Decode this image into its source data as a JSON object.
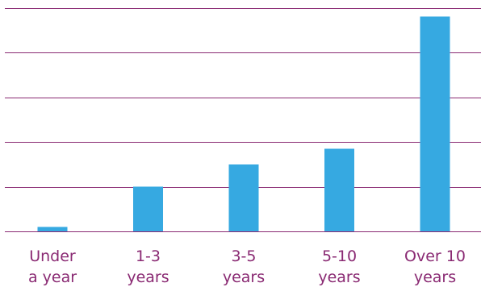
{
  "chart_data": {
    "type": "bar",
    "title": "",
    "xlabel": "",
    "ylabel": "",
    "categories": [
      [
        "Under",
        "a year"
      ],
      [
        "1-3",
        "years"
      ],
      [
        "3-5",
        "years"
      ],
      [
        "5-10",
        "years"
      ],
      [
        "Over 10",
        "years"
      ]
    ],
    "values": [
      1,
      10,
      15,
      18.5,
      48
    ],
    "ylim": [
      0,
      50
    ],
    "grid": true,
    "y_tick_labels_shown": false,
    "legend": "none",
    "colors": {
      "bar": "#36a9e1",
      "grid": "#8a2a73",
      "label": "#8a2a73",
      "background": "#ffffff"
    }
  }
}
